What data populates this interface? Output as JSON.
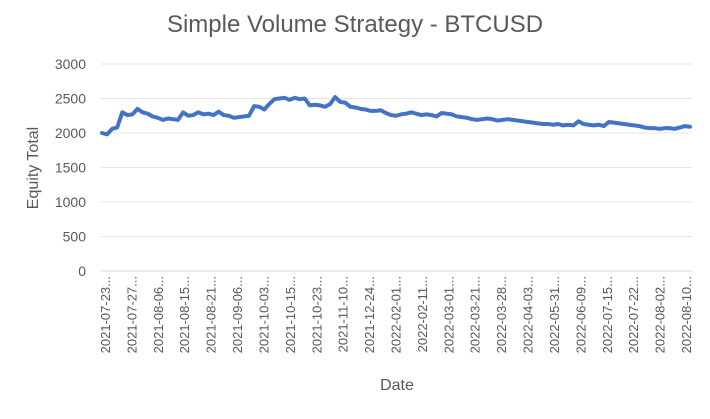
{
  "chart_data": {
    "type": "line",
    "title": "Simple Volume Strategy - BTCUSD",
    "xlabel": "Date",
    "ylabel": "Equity Total",
    "ylim": [
      0,
      3000
    ],
    "yticks": [
      0,
      500,
      1000,
      1500,
      2000,
      2500,
      3000
    ],
    "grid": "horizontal",
    "legend": "none",
    "line_color": "#4472C4",
    "x_tick_labels": [
      "2021-07-23...",
      "2021-07-27...",
      "2021-08-06...",
      "2021-08-15...",
      "2021-08-21...",
      "2021-09-06...",
      "2021-10-03...",
      "2021-10-15...",
      "2021-10-23...",
      "2021-11-10...",
      "2021-12-24...",
      "2022-02-01...",
      "2022-02-11...",
      "2022-03-01...",
      "2022-03-21...",
      "2022-03-28...",
      "2022-04-03...",
      "2022-05-31...",
      "2022-06-09...",
      "2022-07-15...",
      "2022-07-22...",
      "2022-08-02...",
      "2022-08-10..."
    ],
    "series": [
      {
        "values": [
          2000,
          1980,
          2060,
          2080,
          2300,
          2260,
          2270,
          2350,
          2300,
          2280,
          2240,
          2220,
          2190,
          2210,
          2200,
          2190,
          2300,
          2250,
          2260,
          2300,
          2270,
          2280,
          2260,
          2310,
          2260,
          2250,
          2220,
          2230,
          2240,
          2250,
          2390,
          2380,
          2340,
          2420,
          2490,
          2500,
          2510,
          2480,
          2510,
          2490,
          2500,
          2400,
          2410,
          2400,
          2380,
          2420,
          2520,
          2450,
          2440,
          2380,
          2370,
          2350,
          2340,
          2320,
          2320,
          2330,
          2290,
          2260,
          2250,
          2270,
          2280,
          2300,
          2280,
          2260,
          2270,
          2260,
          2240,
          2290,
          2280,
          2270,
          2240,
          2230,
          2220,
          2200,
          2190,
          2200,
          2210,
          2200,
          2180,
          2190,
          2200,
          2190,
          2180,
          2170,
          2160,
          2150,
          2140,
          2130,
          2130,
          2120,
          2130,
          2110,
          2120,
          2110,
          2170,
          2130,
          2120,
          2110,
          2120,
          2100,
          2160,
          2150,
          2140,
          2130,
          2120,
          2110,
          2100,
          2080,
          2070,
          2070,
          2060,
          2070,
          2070,
          2060,
          2080,
          2100,
          2090
        ]
      }
    ]
  }
}
